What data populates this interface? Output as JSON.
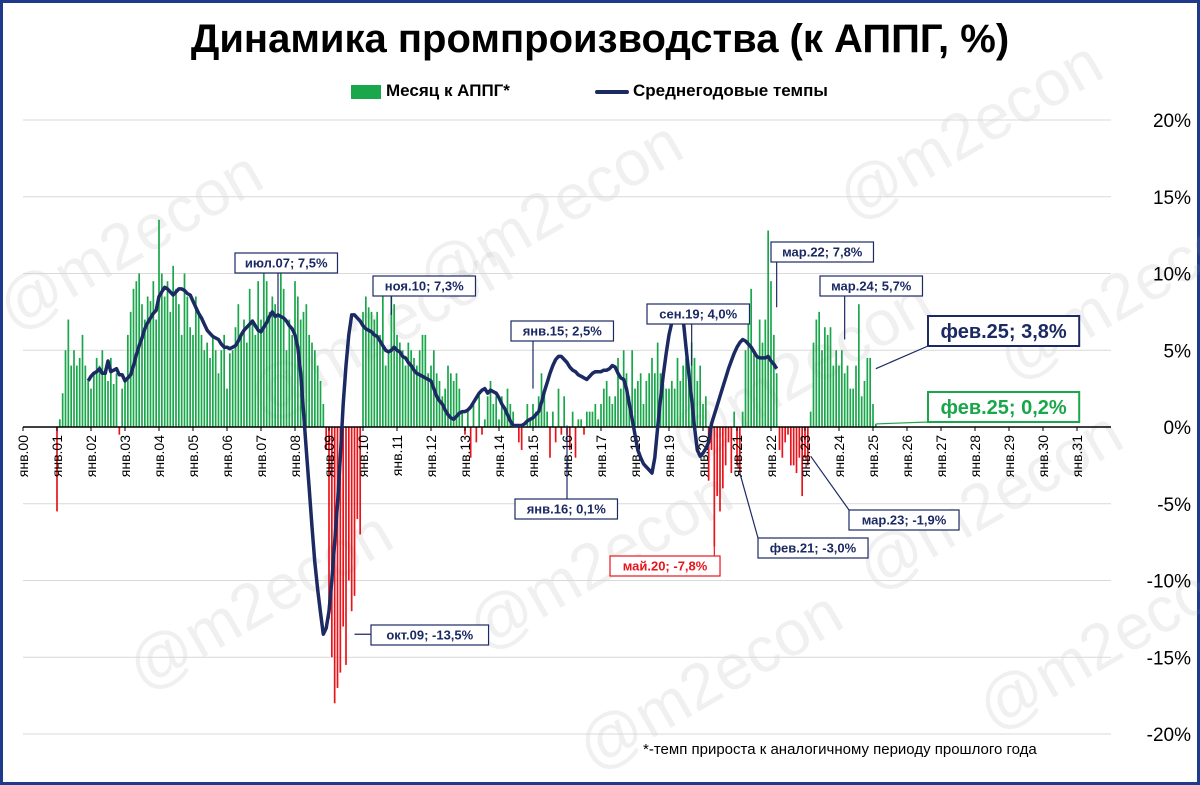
{
  "title": "Динамика промпроизводства (к АППГ, %)",
  "legend": {
    "bars": "Месяц к АППГ*",
    "line": "Среднегодовые темпы"
  },
  "footnote": "*-темп прироста к аналогичному периоду прошлого года",
  "watermark": "@m2econ",
  "colors": {
    "positive_bar": "#1aa64a",
    "negative_bar": "#e8141b",
    "line": "#1b2a63",
    "grid": "#d9d9d9",
    "annotation_dark": "#1b2a63",
    "annotation_red": "#e8141b",
    "annotation_green": "#1aa64a"
  },
  "chart_data": {
    "type": "bar",
    "title": "Динамика промпроизводства (к АППГ, %)",
    "ylim": [
      -20,
      20
    ],
    "y_ticks": [
      20,
      15,
      10,
      5,
      0,
      -5,
      -10,
      -15,
      -20
    ],
    "y_tick_labels": [
      "20%",
      "15%",
      "10%",
      "5%",
      "0%",
      "-5%",
      "-10%",
      "-15%",
      "-20%"
    ],
    "y_axis_position": "right",
    "grid": true,
    "legend_placement": "top",
    "x_tick_labels": [
      "янв.00",
      "янв.01",
      "янв.02",
      "янв.03",
      "янв.04",
      "янв.05",
      "янв.06",
      "янв.07",
      "янв.08",
      "янв.09",
      "янв.10",
      "янв.11",
      "янв.12",
      "янв.13",
      "янв.14",
      "янв.15",
      "янв.16",
      "янв.17",
      "янв.18",
      "янв.19",
      "янв.20",
      "янв.21",
      "янв.22",
      "янв.23",
      "янв.24",
      "янв.25",
      "янв.26",
      "янв.27",
      "янв.28",
      "янв.29",
      "янв.30",
      "янв.31"
    ],
    "bar_series": {
      "name": "Месяц к АППГ*",
      "start": "янв.01",
      "frequency": "monthly",
      "values_by_year": [
        [
          -5.5,
          0.5,
          2.2,
          5.0,
          7.0,
          4.0,
          5.0,
          4.0,
          4.5,
          6.0,
          4.0,
          3.0
        ],
        [
          2.5,
          3.5,
          4.5,
          4.0,
          5.0,
          3.8,
          3.0,
          4.5,
          2.8,
          3.5,
          -0.5,
          2.5
        ],
        [
          3.0,
          6.0,
          7.5,
          9.0,
          9.5,
          10.0,
          8.0,
          7.0,
          8.5,
          8.2,
          9.5,
          7.0
        ],
        [
          13.5,
          10.0,
          8.5,
          9.5,
          7.5,
          10.5,
          9.0,
          8.0,
          6.0,
          10.0,
          8.5,
          6.5
        ],
        [
          6.0,
          8.5,
          7.5,
          6.0,
          5.0,
          5.5,
          4.5,
          6.0,
          5.0,
          3.5,
          5.0,
          6.0
        ],
        [
          2.5,
          4.8,
          5.0,
          6.5,
          8.0,
          6.0,
          7.0,
          5.5,
          9.0,
          7.0,
          6.0,
          9.5
        ],
        [
          7.0,
          10.0,
          9.5,
          7.5,
          8.5,
          8.0,
          7.5,
          10.0,
          9.0,
          5.0,
          7.0,
          6.0
        ],
        [
          9.5,
          8.5,
          7.0,
          7.5,
          8.0,
          6.0,
          5.5,
          5.0,
          4.0,
          3.0,
          1.5,
          -1.5
        ],
        [
          -12.5,
          -15.0,
          -18.0,
          -17.0,
          -16.0,
          -13.0,
          -15.5,
          -10.0,
          -12.0,
          -11.0,
          -6.0,
          -7.0
        ],
        [
          7.5,
          8.5,
          7.8,
          7.5,
          7.0,
          7.5,
          6.0,
          8.5,
          4.0,
          5.0,
          9.0,
          8.0
        ],
        [
          6.0,
          5.5,
          5.0,
          4.0,
          5.5,
          5.0,
          4.5,
          4.0,
          5.0,
          6.0,
          6.0,
          3.5
        ],
        [
          4.0,
          5.0,
          3.5,
          3.0,
          2.0,
          2.5,
          4.0,
          3.5,
          3.0,
          3.5,
          2.5,
          1.0
        ],
        [
          -0.5,
          1.0,
          -2.0,
          1.5,
          -1.0,
          2.0,
          -0.5,
          0.5,
          2.0,
          3.0,
          1.5,
          2.0
        ],
        [
          0.5,
          2.0,
          1.0,
          2.5,
          1.5,
          1.0,
          0.0,
          -1.0,
          -1.5,
          0.0,
          1.5,
          0.5
        ],
        [
          1.5,
          1.0,
          2.0,
          3.5,
          2.5,
          1.0,
          -2.0,
          1.0,
          -1.0,
          2.5,
          -0.5,
          2.0
        ],
        [
          -0.5,
          -1.5,
          1.0,
          -2.0,
          0.5,
          0.5,
          -0.5,
          1.0,
          1.0,
          1.0,
          1.5,
          0.5
        ],
        [
          1.5,
          2.5,
          3.0,
          2.0,
          1.5,
          2.0,
          4.5,
          2.5,
          5.0,
          3.5,
          2.0,
          5.0
        ],
        [
          2.5,
          3.0,
          3.5,
          1.5,
          3.0,
          3.5,
          4.5,
          3.5,
          5.5,
          3.5,
          2.8,
          2.5
        ],
        [
          2.5,
          3.0,
          2.5,
          4.5,
          3.0,
          4.0,
          4.5,
          3.5,
          5.5,
          4.5,
          3.0,
          4.0
        ],
        [
          1.5,
          2.0,
          -3.5,
          -1.5,
          -7.8,
          -4.5,
          -5.5,
          -4.0,
          -2.5,
          -1.0,
          -3.0,
          1.0
        ],
        [
          -2.5,
          -3.0,
          1.0,
          5.0,
          8.0,
          9.0,
          5.0,
          4.5,
          7.0,
          5.5,
          7.0,
          12.8
        ],
        [
          9.5,
          6.0,
          3.5,
          -1.5,
          -2.0,
          -1.0,
          -0.5,
          -2.5,
          -2.5,
          -3.0,
          -2.0,
          -4.5
        ],
        [
          -2.0,
          -2.5,
          1.0,
          5.5,
          7.0,
          7.5,
          5.0,
          6.5,
          6.0,
          6.5,
          4.0,
          5.0
        ],
        [
          4.0,
          5.0,
          3.5,
          4.0,
          2.5,
          2.5,
          4.0,
          8.0,
          2.0,
          3.0,
          4.5,
          4.5
        ],
        [
          1.5,
          0.2
        ]
      ]
    },
    "line_series": {
      "name": "Среднегодовые темпы",
      "start": "дек.01",
      "frequency": "monthly",
      "values": [
        3.0,
        3.3,
        3.5,
        3.6,
        3.8,
        3.5,
        3.5,
        4.3,
        3.6,
        3.7,
        3.8,
        3.4,
        3.4,
        3.0,
        3.2,
        3.4,
        4.0,
        4.7,
        5.3,
        5.8,
        6.4,
        6.8,
        7.1,
        7.4,
        7.6,
        8.5,
        8.8,
        9.1,
        9.0,
        8.8,
        8.6,
        8.8,
        9.0,
        9.0,
        8.9,
        8.7,
        8.6,
        8.2,
        7.8,
        7.4,
        7.1,
        6.7,
        6.3,
        6.1,
        5.9,
        5.8,
        5.7,
        5.4,
        5.2,
        5.2,
        5.1,
        5.2,
        5.3,
        5.6,
        6.0,
        6.3,
        6.5,
        6.7,
        6.9,
        6.6,
        6.3,
        6.2,
        6.5,
        6.8,
        7.2,
        7.5,
        7.2,
        7.3,
        7.2,
        7.1,
        6.9,
        6.6,
        6.4,
        6.0,
        5.2,
        3.5,
        1.0,
        -1.5,
        -4.0,
        -6.5,
        -8.8,
        -10.6,
        -12.1,
        -13.5,
        -13.1,
        -12.0,
        -10.0,
        -7.5,
        -5.0,
        -2.0,
        1.5,
        4.0,
        6.0,
        7.3,
        7.3,
        7.1,
        6.9,
        6.6,
        6.4,
        6.3,
        6.2,
        6.0,
        5.9,
        5.6,
        5.3,
        5.0,
        4.9,
        5.0,
        5.2,
        5.0,
        4.9,
        4.6,
        4.5,
        4.2,
        4.0,
        3.7,
        3.5,
        3.4,
        3.3,
        3.2,
        3.1,
        3.0,
        2.5,
        2.0,
        1.7,
        1.5,
        1.1,
        0.8,
        0.6,
        0.5,
        0.7,
        0.9,
        1.0,
        1.0,
        1.1,
        1.3,
        1.6,
        1.9,
        2.2,
        2.4,
        2.5,
        2.2,
        2.4,
        2.3,
        2.2,
        1.9,
        1.5,
        1.2,
        0.8,
        0.4,
        0.1,
        0.1,
        0.1,
        0.1,
        0.2,
        0.4,
        0.5,
        0.6,
        0.8,
        1.0,
        1.6,
        2.3,
        2.9,
        3.5,
        4.0,
        4.4,
        4.6,
        4.6,
        4.4,
        4.2,
        3.9,
        3.7,
        3.6,
        3.4,
        3.3,
        3.2,
        3.1,
        3.3,
        3.5,
        3.6,
        3.6,
        3.6,
        3.7,
        3.7,
        3.8,
        4.0,
        3.9,
        3.5,
        3.2,
        3.1,
        2.5,
        1.5,
        0.5,
        -0.5,
        -1.5,
        -2.0,
        -2.4,
        -2.6,
        -2.8,
        -3.0,
        -2.0,
        0.0,
        1.8,
        3.4,
        4.8,
        6.0,
        6.8,
        7.3,
        7.6,
        7.8,
        7.0,
        5.2,
        3.5,
        1.8,
        0.0,
        -1.5,
        -1.9,
        -1.7,
        -1.4,
        -1.0,
        0.2,
        0.8,
        1.4,
        2.0,
        2.6,
        3.2,
        3.8,
        4.3,
        4.8,
        5.2,
        5.5,
        5.7,
        5.6,
        5.4,
        5.2,
        4.9,
        4.6,
        4.5,
        4.5,
        4.5,
        4.6,
        4.3,
        4.1,
        3.8
      ]
    },
    "annotations": [
      {
        "text": "июл.07; 7,5%",
        "x": "июл.07",
        "y": 7.5,
        "style": "dark"
      },
      {
        "text": "ноя.10; 7,3%",
        "x": "ноя.10",
        "y": 7.3,
        "style": "dark"
      },
      {
        "text": "янв.15; 2,5%",
        "x": "янв.15",
        "y": 2.5,
        "style": "dark"
      },
      {
        "text": "сен.19; 4,0%",
        "x": "сен.19",
        "y": 4.0,
        "style": "dark"
      },
      {
        "text": "мар.22; 7,8%",
        "x": "мар.22",
        "y": 7.8,
        "style": "dark"
      },
      {
        "text": "мар.24; 5,7%",
        "x": "мар.24",
        "y": 5.7,
        "style": "dark"
      },
      {
        "text": "фев.25; 3,8%",
        "x": "фев.25",
        "y": 3.8,
        "style": "dark_big"
      },
      {
        "text": "фев.25; 0,2%",
        "x": "фев.25",
        "y": 0.2,
        "style": "green_big"
      },
      {
        "text": "окт.09; -13,5%",
        "x": "окт.09",
        "y": -13.5,
        "style": "dark"
      },
      {
        "text": "янв.16; 0,1%",
        "x": "янв.16",
        "y": 0.1,
        "style": "dark"
      },
      {
        "text": "май.20; -7,8%",
        "x": "май.20",
        "y": -7.8,
        "style": "red"
      },
      {
        "text": "фев.21; -3,0%",
        "x": "фев.21",
        "y": -3.0,
        "style": "dark"
      },
      {
        "text": "мар.23; -1,9%",
        "x": "мар.23",
        "y": -1.9,
        "style": "dark"
      }
    ]
  }
}
